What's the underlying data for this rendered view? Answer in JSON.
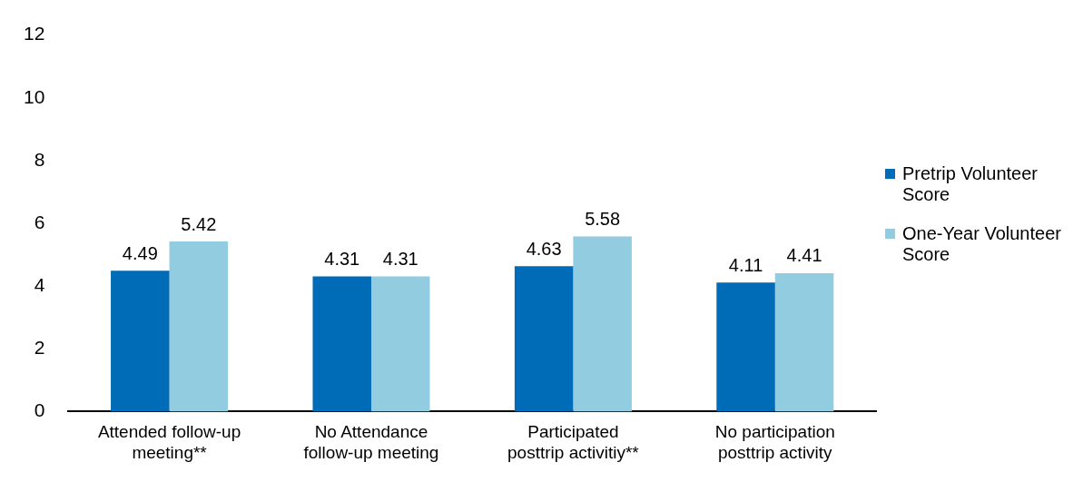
{
  "chart_data": {
    "type": "bar",
    "categories": [
      "Attended follow-up meeting**",
      "No Attendance follow-up meeting",
      "Participated posttrip activitiy**",
      "No participation posttrip activity"
    ],
    "series": [
      {
        "name": "Pretrip Volunteer Score",
        "color": "#006bb6",
        "values": [
          4.49,
          4.31,
          4.63,
          4.11
        ]
      },
      {
        "name": "One-Year Volunteer Score",
        "color": "#92cce0",
        "values": [
          5.42,
          4.31,
          5.58,
          4.41
        ]
      }
    ],
    "ylim": [
      0,
      12
    ],
    "yticks": [
      0,
      2,
      4,
      6,
      8,
      10,
      12
    ],
    "grid": false,
    "legend": "right",
    "data_labels": true
  }
}
